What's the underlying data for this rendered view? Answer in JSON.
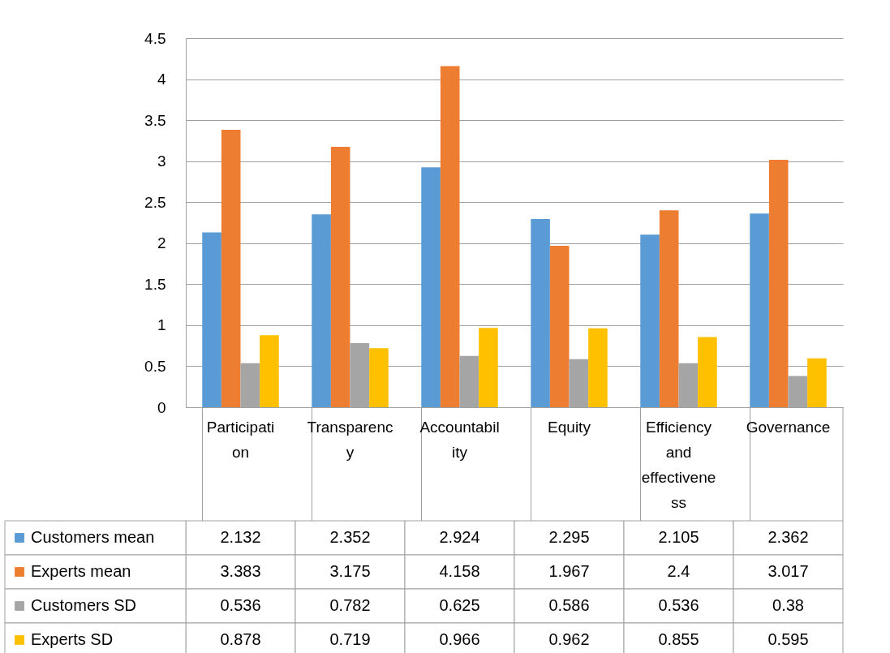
{
  "chart_data": {
    "type": "bar",
    "categories": [
      "Participation",
      "Transparency",
      "Accountability",
      "Equity",
      "Efficiency and effectiveness",
      "Governance"
    ],
    "series": [
      {
        "name": "Customers mean",
        "color": "#5b9bd5",
        "values": [
          2.132,
          2.352,
          2.924,
          2.295,
          2.105,
          2.362
        ]
      },
      {
        "name": "Experts mean",
        "color": "#ed7d31",
        "values": [
          3.383,
          3.175,
          4.158,
          1.967,
          2.4,
          3.017
        ]
      },
      {
        "name": "Customers SD",
        "color": "#a5a5a5",
        "values": [
          0.536,
          0.782,
          0.625,
          0.586,
          0.536,
          0.38
        ]
      },
      {
        "name": "Experts SD",
        "color": "#ffc000",
        "values": [
          0.878,
          0.719,
          0.966,
          0.962,
          0.855,
          0.595
        ]
      }
    ],
    "ylim": [
      0,
      4.5
    ],
    "yticks": [
      0,
      0.5,
      1,
      1.5,
      2,
      2.5,
      3,
      3.5,
      4,
      4.5
    ],
    "grid": "y",
    "data_labels": true,
    "legend": "bottom"
  }
}
